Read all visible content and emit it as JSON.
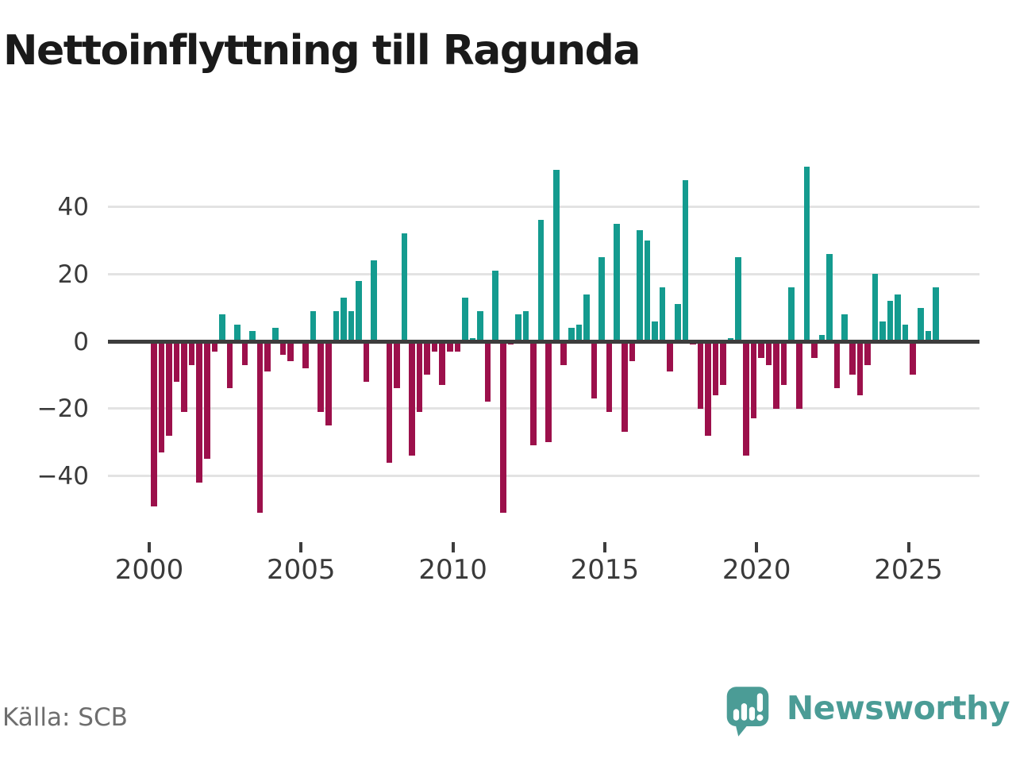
{
  "title": "Nettoinflyttning till Ragunda",
  "source": "Källa: SCB",
  "logo": {
    "wordmark": "Newsworthy",
    "badge_icon": "bar-chart-speech-bubble"
  },
  "colors": {
    "positive_bar": "#149b8f",
    "negative_bar": "#9c104b",
    "zero_line": "#3d3d3d",
    "gridline": "#e3e3e3",
    "axis_text": "#3a3a3a",
    "title_text": "#1a1a1a",
    "source_text": "#6e6e6e",
    "logo_teal": "#4b9c96"
  },
  "chart_data": {
    "type": "bar",
    "title": "Nettoinflyttning till Ragunda",
    "xlabel": "",
    "ylabel": "",
    "y_ticks": [
      40,
      20,
      0,
      -20,
      -40
    ],
    "y_tick_labels": [
      "40",
      "20",
      "0",
      "−20",
      "−40"
    ],
    "ylim": [
      -55,
      55
    ],
    "x_tick_labels": [
      "2000",
      "2005",
      "2010",
      "2015",
      "2020",
      "2025"
    ],
    "x_tick_every_n_bars": 20,
    "grid": true,
    "legend": "none",
    "quarters": [
      "2000-Q1",
      "2000-Q2",
      "2000-Q3",
      "2000-Q4",
      "2001-Q1",
      "2001-Q2",
      "2001-Q3",
      "2001-Q4",
      "2002-Q1",
      "2002-Q2",
      "2002-Q3",
      "2002-Q4",
      "2003-Q1",
      "2003-Q2",
      "2003-Q3",
      "2003-Q4",
      "2004-Q1",
      "2004-Q2",
      "2004-Q3",
      "2004-Q4",
      "2005-Q1",
      "2005-Q2",
      "2005-Q3",
      "2005-Q4",
      "2006-Q1",
      "2006-Q2",
      "2006-Q3",
      "2006-Q4",
      "2007-Q1",
      "2007-Q2",
      "2007-Q3",
      "2007-Q4",
      "2008-Q1",
      "2008-Q2",
      "2008-Q3",
      "2008-Q4",
      "2009-Q1",
      "2009-Q2",
      "2009-Q3",
      "2009-Q4",
      "2010-Q1",
      "2010-Q2",
      "2010-Q3",
      "2010-Q4",
      "2011-Q1",
      "2011-Q2",
      "2011-Q3",
      "2011-Q4",
      "2012-Q1",
      "2012-Q2",
      "2012-Q3",
      "2012-Q4",
      "2013-Q1",
      "2013-Q2",
      "2013-Q3",
      "2013-Q4",
      "2014-Q1",
      "2014-Q2",
      "2014-Q3",
      "2014-Q4",
      "2015-Q1",
      "2015-Q2",
      "2015-Q3",
      "2015-Q4",
      "2016-Q1",
      "2016-Q2",
      "2016-Q3",
      "2016-Q4",
      "2017-Q1",
      "2017-Q2",
      "2017-Q3",
      "2017-Q4",
      "2018-Q1",
      "2018-Q2",
      "2018-Q3",
      "2018-Q4",
      "2019-Q1",
      "2019-Q2",
      "2019-Q3",
      "2019-Q4",
      "2020-Q1",
      "2020-Q2",
      "2020-Q3",
      "2020-Q4",
      "2021-Q1",
      "2021-Q2",
      "2021-Q3",
      "2021-Q4",
      "2022-Q1",
      "2022-Q2",
      "2022-Q3",
      "2022-Q4",
      "2023-Q1",
      "2023-Q2",
      "2023-Q3",
      "2023-Q4",
      "2024-Q1",
      "2024-Q2",
      "2024-Q3",
      "2024-Q4",
      "2025-Q1",
      "2025-Q2",
      "2025-Q3",
      "2025-Q4"
    ],
    "values": [
      -49,
      -33,
      -28,
      -12,
      -21,
      -7,
      -42,
      -35,
      -3,
      8,
      -14,
      5,
      -7,
      3,
      -51,
      -9,
      4,
      -4,
      -6,
      0,
      -8,
      9,
      -21,
      -25,
      9,
      13,
      9,
      18,
      -12,
      24,
      0,
      -36,
      -14,
      32,
      -34,
      -21,
      -10,
      -3,
      -13,
      -3,
      -3,
      13,
      1,
      9,
      -18,
      21,
      -51,
      -1,
      8,
      9,
      -31,
      36,
      -30,
      51,
      -7,
      4,
      5,
      14,
      -17,
      25,
      -21,
      35,
      -27,
      -6,
      33,
      30,
      6,
      16,
      -9,
      11,
      48,
      -1,
      -20,
      -28,
      -16,
      -13,
      1,
      25,
      -34,
      -23,
      -5,
      -7,
      -20,
      -13,
      16,
      -20,
      52,
      -5,
      2,
      26,
      -14,
      8,
      -10,
      -16,
      -7,
      20,
      6,
      12,
      14,
      5,
      -10,
      10,
      3,
      16
    ]
  }
}
